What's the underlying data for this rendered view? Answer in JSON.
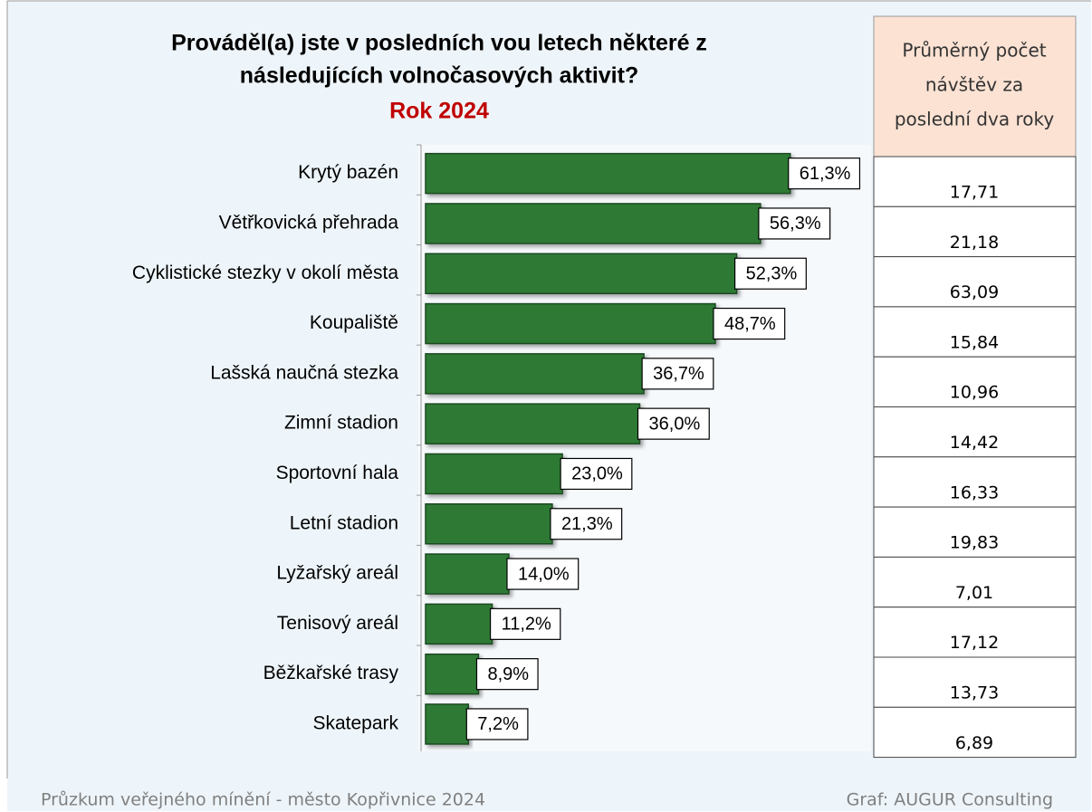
{
  "chart_data": {
    "type": "bar",
    "orientation": "horizontal",
    "title": [
      "Prováděl(a) jste v posledních vou letech některé z",
      "následujících volnočasových aktivit?"
    ],
    "subtitle": "Rok 2024",
    "categories": [
      "Krytý bazén",
      "Větřkovická přehrada",
      "Cyklistické stezky v okolí města",
      "Koupaliště",
      "Lašská naučná stezka",
      "Zimní stadion",
      "Sportovní hala",
      "Letní stadion",
      "Lyžařský areál",
      "Tenisový areál",
      "Běžkařské trasy",
      "Skatepark"
    ],
    "values": [
      61.3,
      56.3,
      52.3,
      48.7,
      36.7,
      36.0,
      23.0,
      21.3,
      14.0,
      11.2,
      8.9,
      7.2
    ],
    "value_labels": [
      "61,3%",
      "56,3%",
      "52,3%",
      "48,7%",
      "36,7%",
      "36,0%",
      "23,0%",
      "21,3%",
      "14,0%",
      "11,2%",
      "8,9%",
      "7,2%"
    ],
    "color": "#2f7a34",
    "xlim": [
      0,
      65
    ]
  },
  "table": {
    "header": [
      "Průměrný počet",
      "návštěv za",
      "poslední dva roky"
    ],
    "rows": [
      "17,71",
      "21,18",
      "63,09",
      "15,84",
      "10,96",
      "14,42",
      "16,33",
      "19,83",
      "7,01",
      "17,12",
      "13,73",
      "6,89"
    ]
  },
  "footer": {
    "left": "Průzkum veřejného mínění - město Kopřivnice 2024",
    "right": "Graf: AUGUR Consulting"
  }
}
